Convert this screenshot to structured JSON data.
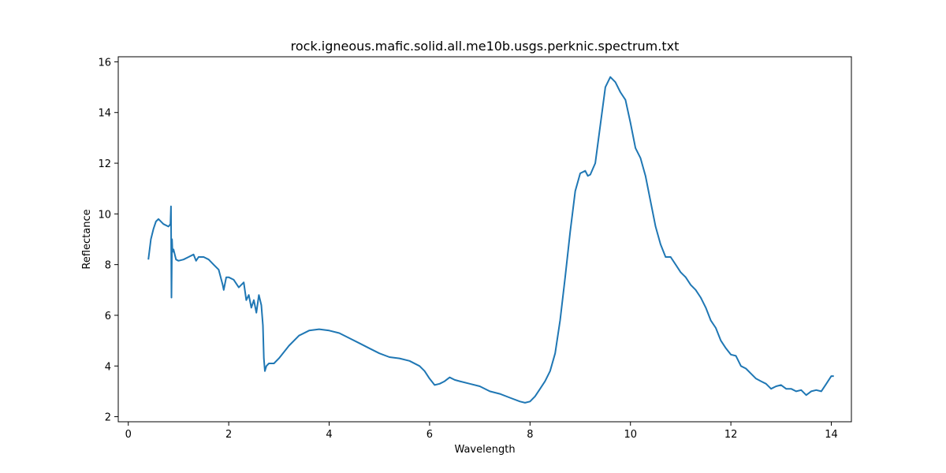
{
  "colors": {
    "line": "#1f77b4",
    "axes": "#000000",
    "background": "#ffffff"
  },
  "chart_data": {
    "type": "line",
    "title": "rock.igneous.mafic.solid.all.me10b.usgs.perknic.spectrum.txt",
    "xlabel": "Wavelength",
    "ylabel": "Reflectance",
    "xlim": [
      -0.2,
      14.4
    ],
    "ylim": [
      1.8,
      16.2
    ],
    "grid": false,
    "legend": "none",
    "xticks": [
      0,
      2,
      4,
      6,
      8,
      10,
      12,
      14
    ],
    "xtick_labels": [
      "0",
      "2",
      "4",
      "6",
      "8",
      "10",
      "12",
      "14"
    ],
    "yticks": [
      2,
      4,
      6,
      8,
      10,
      12,
      14,
      16
    ],
    "ytick_labels": [
      "2",
      "4",
      "6",
      "8",
      "10",
      "12",
      "14",
      "16"
    ],
    "series": [
      {
        "x": [
          0.4,
          0.45,
          0.5,
          0.55,
          0.6,
          0.7,
          0.8,
          0.84,
          0.85,
          0.86,
          0.87,
          0.88,
          0.9,
          0.95,
          1.0,
          1.1,
          1.2,
          1.3,
          1.35,
          1.4,
          1.5,
          1.6,
          1.7,
          1.8,
          1.88,
          1.9,
          1.95,
          2.0,
          2.1,
          2.2,
          2.3,
          2.35,
          2.4,
          2.45,
          2.5,
          2.55,
          2.6,
          2.65,
          2.68,
          2.7,
          2.72,
          2.75,
          2.8,
          2.9,
          3.0,
          3.2,
          3.4,
          3.6,
          3.8,
          4.0,
          4.2,
          4.4,
          4.6,
          4.8,
          5.0,
          5.2,
          5.4,
          5.6,
          5.8,
          5.9,
          6.0,
          6.1,
          6.2,
          6.3,
          6.4,
          6.5,
          6.6,
          6.8,
          7.0,
          7.2,
          7.4,
          7.6,
          7.8,
          7.9,
          8.0,
          8.1,
          8.2,
          8.3,
          8.4,
          8.5,
          8.6,
          8.7,
          8.8,
          8.9,
          9.0,
          9.1,
          9.15,
          9.2,
          9.3,
          9.4,
          9.5,
          9.6,
          9.7,
          9.8,
          9.9,
          10.0,
          10.1,
          10.2,
          10.3,
          10.4,
          10.5,
          10.6,
          10.7,
          10.8,
          10.9,
          11.0,
          11.1,
          11.2,
          11.3,
          11.4,
          11.5,
          11.6,
          11.7,
          11.8,
          11.9,
          12.0,
          12.1,
          12.2,
          12.3,
          12.4,
          12.5,
          12.6,
          12.7,
          12.8,
          12.9,
          13.0,
          13.1,
          13.2,
          13.3,
          13.4,
          13.5,
          13.6,
          13.7,
          13.8,
          13.9,
          14.0,
          14.05
        ],
        "y": [
          8.2,
          9.0,
          9.4,
          9.7,
          9.8,
          9.6,
          9.5,
          9.6,
          10.3,
          6.7,
          9.0,
          8.5,
          8.6,
          8.2,
          8.15,
          8.2,
          8.3,
          8.4,
          8.15,
          8.3,
          8.3,
          8.2,
          8.0,
          7.8,
          7.2,
          7.0,
          7.5,
          7.5,
          7.4,
          7.1,
          7.3,
          6.6,
          6.8,
          6.3,
          6.6,
          6.1,
          6.8,
          6.4,
          5.6,
          4.3,
          3.8,
          4.0,
          4.1,
          4.1,
          4.3,
          4.8,
          5.2,
          5.4,
          5.45,
          5.4,
          5.3,
          5.1,
          4.9,
          4.7,
          4.5,
          4.35,
          4.3,
          4.2,
          4.0,
          3.8,
          3.5,
          3.25,
          3.3,
          3.4,
          3.55,
          3.45,
          3.4,
          3.3,
          3.2,
          3.0,
          2.9,
          2.75,
          2.6,
          2.55,
          2.6,
          2.8,
          3.1,
          3.4,
          3.8,
          4.5,
          5.8,
          7.5,
          9.3,
          10.9,
          11.6,
          11.7,
          11.5,
          11.55,
          12.0,
          13.5,
          15.0,
          15.4,
          15.2,
          14.8,
          14.5,
          13.6,
          12.6,
          12.2,
          11.5,
          10.5,
          9.5,
          8.8,
          8.3,
          8.3,
          8.0,
          7.7,
          7.5,
          7.2,
          7.0,
          6.7,
          6.3,
          5.8,
          5.5,
          5.0,
          4.7,
          4.45,
          4.4,
          4.0,
          3.9,
          3.7,
          3.5,
          3.4,
          3.3,
          3.1,
          3.2,
          3.25,
          3.1,
          3.1,
          3.0,
          3.05,
          2.85,
          3.0,
          3.05,
          3.0,
          3.3,
          3.6,
          3.6
        ]
      }
    ]
  }
}
